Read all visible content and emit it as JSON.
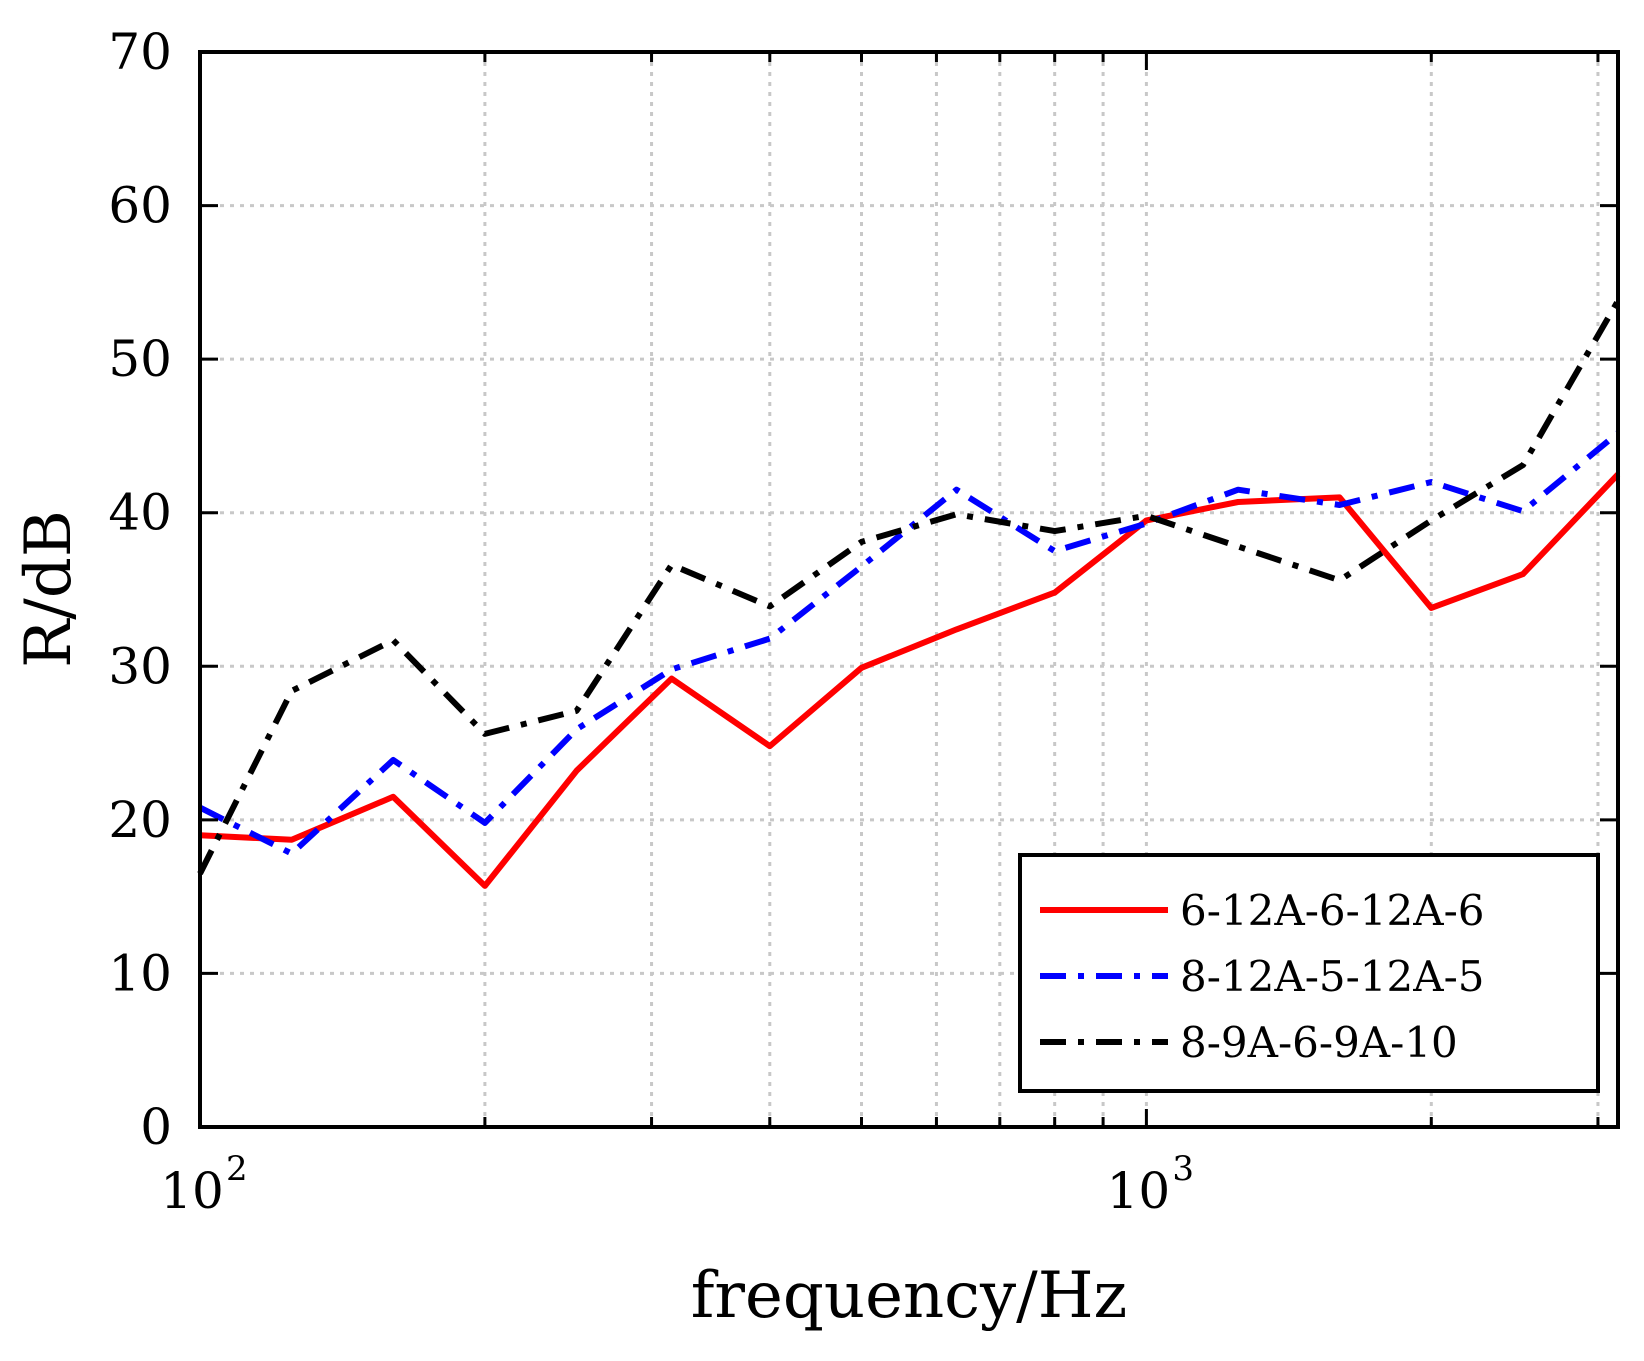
{
  "chart_data": {
    "type": "line",
    "title": "",
    "xlabel": "frequency/Hz",
    "ylabel": "R/dB",
    "xscale": "log",
    "xlim": [
      100,
      3150
    ],
    "ylim": [
      0,
      70
    ],
    "yticks": [
      0,
      10,
      20,
      30,
      40,
      50,
      60,
      70
    ],
    "xticks": [
      {
        "value": 100,
        "base": "10",
        "exp": "2"
      },
      {
        "value": 1000,
        "base": "10",
        "exp": "3"
      }
    ],
    "grid": true,
    "legend_position": "bottom-right",
    "x": [
      100,
      125,
      160,
      200,
      250,
      315,
      400,
      500,
      630,
      800,
      1000,
      1250,
      1600,
      2000,
      2500,
      3150
    ],
    "series": [
      {
        "name": "6-12A-6-12A-6",
        "color": "#ff0000",
        "dash": "solid",
        "values": [
          19.0,
          18.7,
          21.5,
          15.7,
          23.2,
          29.2,
          24.8,
          29.9,
          32.4,
          34.8,
          39.5,
          40.7,
          41.0,
          33.8,
          36.0,
          42.5
        ]
      },
      {
        "name": "8-12A-5-12A-5",
        "color": "#0000ff",
        "dash": "dashdot",
        "values": [
          20.8,
          17.8,
          23.9,
          19.8,
          25.9,
          29.8,
          31.8,
          36.5,
          41.5,
          37.5,
          39.3,
          41.5,
          40.5,
          42.0,
          40.1,
          45.2
        ]
      },
      {
        "name": "8-9A-6-9A-10",
        "color": "#000000",
        "dash": "dashdot",
        "values": [
          16.5,
          28.4,
          31.7,
          25.6,
          27.1,
          36.6,
          33.9,
          38.1,
          39.9,
          38.8,
          39.8,
          37.8,
          35.6,
          39.5,
          43.1,
          53.8
        ]
      }
    ]
  }
}
